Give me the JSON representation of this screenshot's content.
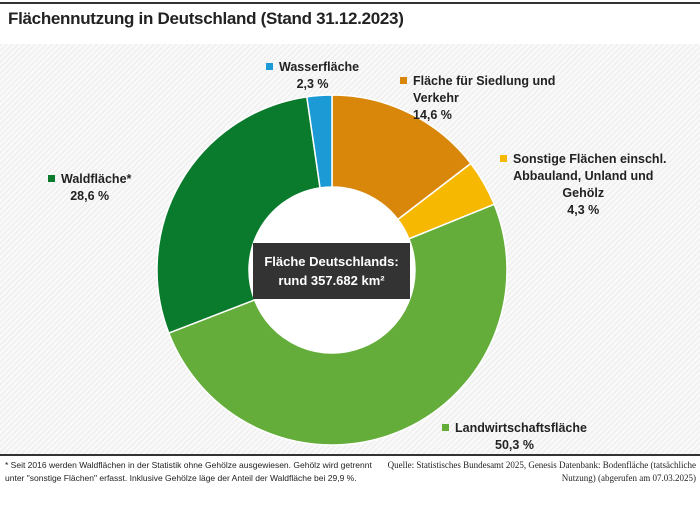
{
  "chart_data": {
    "type": "pie",
    "donut": true,
    "title": "Flächennutzung in Deutschland (Stand 31.12.2023)",
    "center_label": [
      "Fläche Deutschlands:",
      "rund 357.682 km²"
    ],
    "slices": [
      {
        "label": "Fläche für Siedlung und Verkehr",
        "label_lines": [
          "Fläche für Siedlung und",
          "Verkehr"
        ],
        "value": 14.6,
        "value_label": "14,6 %",
        "color": "#d8870a"
      },
      {
        "label": "Sonstige Flächen einschl. Abbauland, Unland und Gehölz",
        "label_lines": [
          "Sonstige Flächen einschl.",
          "Abbauland, Unland und",
          "Gehölz"
        ],
        "value": 4.3,
        "value_label": "4,3 %",
        "color": "#f6b800"
      },
      {
        "label": "Landwirtschaftsfläche",
        "label_lines": [
          "Landwirtschaftsfläche"
        ],
        "value": 50.3,
        "value_label": "50,3 %",
        "color": "#64ad3b"
      },
      {
        "label": "Waldfläche*",
        "label_lines": [
          "Waldfläche*"
        ],
        "value": 28.6,
        "value_label": "28,6 %",
        "color": "#0a7a2c"
      },
      {
        "label": "Wasserfläche",
        "label_lines": [
          "Wasserfläche"
        ],
        "value": 2.3,
        "value_label": "2,3 %",
        "color": "#1c9ad6"
      }
    ]
  },
  "footnote": [
    "* Seit 2016 werden Waldflächen in der Statistik ohne Gehölze ausgewiesen. Gehölz wird getrennt",
    "unter \"sonstige Flächen\" erfasst. Inklusive Gehölze läge der Anteil der Waldfläche bei 29,9 %."
  ],
  "source": [
    "Quelle: Statistisches Bundesamt 2025, Genesis Datenbank: Bodenfläche (tatsächliche",
    "Nutzung) (abgerufen am 07.03.2025)"
  ]
}
